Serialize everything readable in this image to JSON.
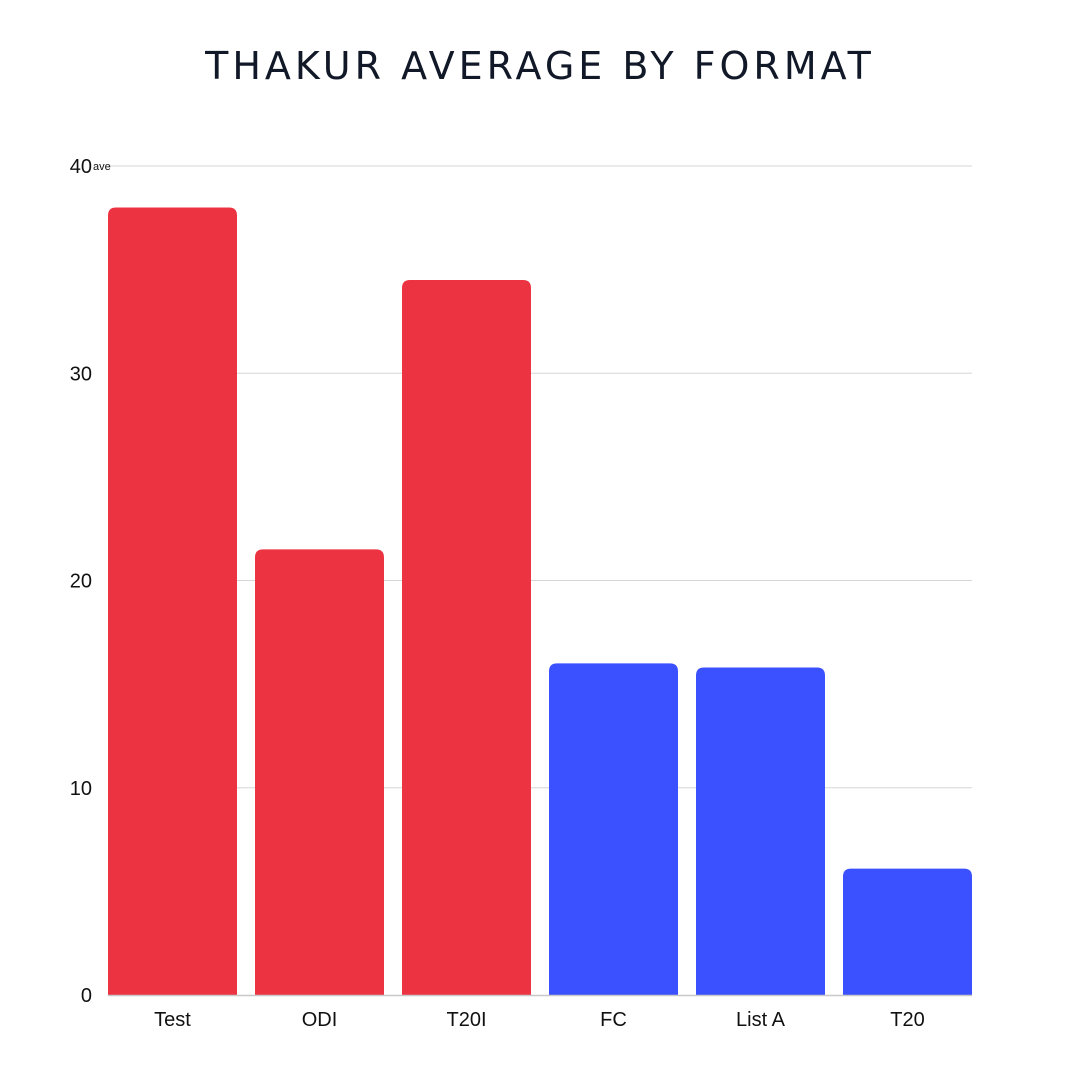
{
  "chart_data": {
    "type": "bar",
    "title": "THAKUR AVERAGE BY FORMAT",
    "xlabel": "",
    "ylabel": "",
    "y_unit": "ave",
    "ylim": [
      0,
      40
    ],
    "y_ticks": [
      0,
      10,
      20,
      30,
      40
    ],
    "grid": true,
    "categories": [
      "Test",
      "ODI",
      "T20I",
      "FC",
      "List A",
      "T20"
    ],
    "values": [
      38,
      21.5,
      34.5,
      16,
      15.8,
      6.1
    ],
    "colors": [
      "#ec3342",
      "#ec3342",
      "#ec3342",
      "#3b51ff",
      "#3b51ff",
      "#3b51ff"
    ]
  }
}
